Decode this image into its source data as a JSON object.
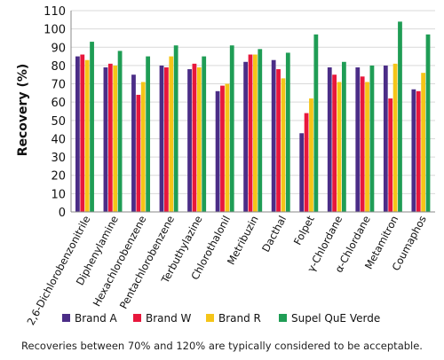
{
  "chart_data": {
    "type": "bar",
    "ylabel": "Recovery (%)",
    "ylim": [
      0,
      110
    ],
    "yticks": [
      0,
      10,
      20,
      30,
      40,
      50,
      60,
      70,
      80,
      90,
      100,
      110
    ],
    "grid": true,
    "legend_position": "bottom",
    "categories": [
      "2,6-Dichlorobenzonitrile",
      "Diphenylamine",
      "Hexachlorobenzene",
      "Pentachlorobenzene",
      "Terbuthylazine",
      "Chlorothalonil",
      "Metribuzin",
      "Dacthal",
      "Folpet",
      "γ-Chlordane",
      "α-Chlordane",
      "Metamitron",
      "Coumaphos"
    ],
    "series": [
      {
        "name": "Brand A",
        "color": "#4b2d87",
        "values": [
          85,
          79,
          75,
          80,
          78,
          66,
          82,
          83,
          43,
          79,
          79,
          80,
          67
        ]
      },
      {
        "name": "Brand W",
        "color": "#e8173c",
        "values": [
          86,
          81,
          64,
          79,
          81,
          69,
          86,
          78,
          54,
          75,
          74,
          62,
          66
        ]
      },
      {
        "name": "Brand R",
        "color": "#f5c518",
        "values": [
          83,
          80,
          71,
          85,
          79,
          70,
          86,
          73,
          62,
          71,
          71,
          81,
          76
        ]
      },
      {
        "name": "Supel QuE Verde",
        "color": "#1f9d55",
        "values": [
          93,
          88,
          85,
          91,
          85,
          91,
          89,
          87,
          97,
          82,
          80,
          104,
          97
        ]
      }
    ]
  },
  "footnote": "Recoveries between 70% and 120% are typically considered to be acceptable."
}
